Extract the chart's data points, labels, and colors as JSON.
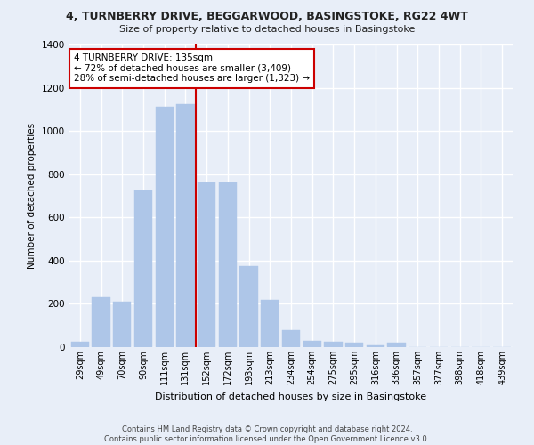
{
  "title_line1": "4, TURNBERRY DRIVE, BEGGARWOOD, BASINGSTOKE, RG22 4WT",
  "title_line2": "Size of property relative to detached houses in Basingstoke",
  "xlabel": "Distribution of detached houses by size in Basingstoke",
  "ylabel": "Number of detached properties",
  "categories": [
    "29sqm",
    "49sqm",
    "70sqm",
    "90sqm",
    "111sqm",
    "131sqm",
    "152sqm",
    "172sqm",
    "193sqm",
    "213sqm",
    "234sqm",
    "254sqm",
    "275sqm",
    "295sqm",
    "316sqm",
    "336sqm",
    "357sqm",
    "377sqm",
    "398sqm",
    "418sqm",
    "439sqm"
  ],
  "values": [
    25,
    230,
    210,
    725,
    1110,
    1125,
    760,
    760,
    375,
    220,
    80,
    30,
    25,
    20,
    10,
    20,
    0,
    0,
    0,
    0,
    0
  ],
  "bar_color": "#aec6e8",
  "bar_edge_color": "#aec6e8",
  "bg_color": "#e8eef8",
  "grid_color": "#ffffff",
  "vline_color": "#cc0000",
  "annotation_text": "4 TURNBERRY DRIVE: 135sqm\n← 72% of detached houses are smaller (3,409)\n28% of semi-detached houses are larger (1,323) →",
  "annotation_box_color": "#ffffff",
  "annotation_box_edge_color": "#cc0000",
  "ylim": [
    0,
    1400
  ],
  "yticks": [
    0,
    200,
    400,
    600,
    800,
    1000,
    1200,
    1400
  ],
  "footer_line1": "Contains HM Land Registry data © Crown copyright and database right 2024.",
  "footer_line2": "Contains public sector information licensed under the Open Government Licence v3.0."
}
